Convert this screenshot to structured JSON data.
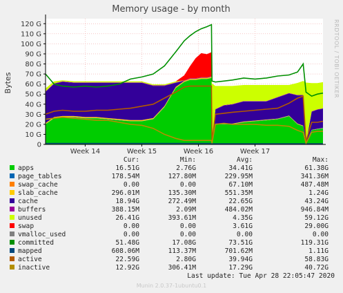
{
  "chart_data": {
    "type": "area",
    "title": "Memory usage - by month",
    "ylabel": "Bytes",
    "side_label": "RRDTOOL / TOBI OETIKER",
    "ylim": [
      0,
      125
    ],
    "yticks": [
      "0",
      "10 G",
      "20 G",
      "30 G",
      "40 G",
      "50 G",
      "60 G",
      "70 G",
      "80 G",
      "90 G",
      "100 G",
      "110 G",
      "120 G"
    ],
    "ytick_values": [
      0,
      10,
      20,
      30,
      40,
      50,
      60,
      70,
      80,
      90,
      100,
      110,
      120
    ],
    "xlim": [
      13.3,
      18.2
    ],
    "xticks": [
      {
        "label": "Week 14",
        "value": 14
      },
      {
        "label": "Week 15",
        "value": 15
      },
      {
        "label": "Week 16",
        "value": 16
      },
      {
        "label": "Week 17",
        "value": 17
      }
    ],
    "x": [
      13.3,
      13.45,
      13.6,
      13.8,
      14.0,
      14.2,
      14.4,
      14.6,
      14.8,
      15.0,
      15.2,
      15.4,
      15.6,
      15.75,
      15.85,
      15.95,
      16.05,
      16.15,
      16.23,
      16.24,
      16.3,
      16.45,
      16.6,
      16.8,
      17.0,
      17.2,
      17.4,
      17.6,
      17.75,
      17.85,
      17.9,
      18.0,
      18.1,
      18.2
    ],
    "series": [
      {
        "name": "apps",
        "color": "#00cc00",
        "values": [
          20,
          26,
          27,
          27,
          26,
          26,
          25,
          24,
          23,
          23,
          25,
          37,
          56,
          62,
          64,
          64,
          65,
          65,
          66,
          2,
          20,
          20,
          20,
          22,
          23,
          24,
          25,
          28,
          20,
          18,
          1,
          14,
          15,
          16
        ]
      },
      {
        "name": "page_tables",
        "color": "#0066b3",
        "values": [
          0.2,
          0.2,
          0.2,
          0.2,
          0.2,
          0.2,
          0.2,
          0.2,
          0.2,
          0.2,
          0.2,
          0.2,
          0.2,
          0.2,
          0.2,
          0.2,
          0.2,
          0.2,
          0.2,
          0.2,
          0.2,
          0.2,
          0.2,
          0.2,
          0.2,
          0.2,
          0.2,
          0.2,
          0.2,
          0.2,
          0.2,
          0.2,
          0.2,
          0.2
        ]
      },
      {
        "name": "swap_cache",
        "color": "#ff8000",
        "values": [
          0,
          0,
          0,
          0,
          0,
          0,
          0,
          0,
          0,
          0,
          0,
          0,
          0,
          0,
          0,
          0,
          0,
          0,
          0,
          0,
          0,
          0,
          0,
          0,
          0,
          0,
          0,
          0,
          0,
          0,
          0,
          0,
          0,
          0
        ]
      },
      {
        "name": "slab_cache",
        "color": "#ffcc00",
        "values": [
          1,
          1,
          1,
          1,
          1,
          1,
          1,
          1,
          1,
          1,
          1,
          1,
          1,
          1,
          1,
          1,
          1,
          1,
          1,
          0.3,
          0.5,
          0.5,
          0.5,
          0.5,
          0.5,
          0.5,
          0.5,
          0.5,
          0.5,
          0.5,
          0.3,
          0.3,
          0.3,
          0.3
        ]
      },
      {
        "name": "cache",
        "color": "#330099",
        "values": [
          31,
          33,
          34,
          33,
          34,
          34,
          35,
          36,
          37,
          37,
          32,
          20,
          4,
          0,
          0,
          0,
          0,
          0,
          0,
          0,
          14,
          18,
          19,
          20,
          19,
          18,
          21,
          22,
          28,
          30,
          0,
          18,
          19,
          19
        ]
      },
      {
        "name": "buffers",
        "color": "#990099",
        "values": [
          0.5,
          0.5,
          0.5,
          0.5,
          0.5,
          0.5,
          0.5,
          0.5,
          0.5,
          0.5,
          0.5,
          0.5,
          0.5,
          0.5,
          0.5,
          0.5,
          0.5,
          0.5,
          0.5,
          0,
          0.4,
          0.4,
          0.4,
          0.4,
          0.4,
          0.4,
          0.4,
          0.4,
          0.4,
          0.4,
          0,
          0.4,
          0.4,
          0.4
        ]
      },
      {
        "name": "unused",
        "color": "#ccff00",
        "values": [
          3,
          2,
          1,
          1,
          1,
          1,
          1,
          1,
          1,
          1,
          1,
          1,
          1,
          0,
          0,
          0,
          0,
          0,
          0,
          58,
          23,
          19,
          18,
          16,
          16,
          16,
          12,
          8,
          12,
          14,
          60,
          28,
          26,
          26
        ]
      },
      {
        "name": "swap",
        "color": "#ff0000",
        "values": [
          0,
          0,
          0,
          0,
          0,
          0,
          0,
          0,
          0,
          0,
          0,
          0,
          0,
          5,
          12,
          20,
          24,
          23,
          24,
          0,
          0,
          0,
          0,
          0,
          0,
          0,
          0,
          0,
          0,
          0,
          0,
          0,
          0,
          0
        ]
      },
      {
        "name": "vmalloc_used",
        "color": "#808080",
        "values": [
          0,
          0,
          0,
          0,
          0,
          0,
          0,
          0,
          0,
          0,
          0,
          0,
          0,
          0,
          0,
          0,
          0,
          0,
          0,
          0,
          0,
          0,
          0,
          0,
          0,
          0,
          0,
          0,
          0,
          0,
          0,
          0,
          0,
          0
        ]
      }
    ],
    "lines": [
      {
        "name": "committed",
        "color": "#008f00",
        "values": [
          70,
          60,
          58,
          57,
          58,
          57,
          58,
          60,
          65,
          67,
          70,
          78,
          92,
          103,
          108,
          112,
          115,
          117,
          119,
          63,
          62,
          63,
          64,
          66,
          65,
          66,
          68,
          69,
          72,
          80,
          52,
          48,
          50,
          51
        ]
      },
      {
        "name": "mapped",
        "color": "#00487d",
        "values": [
          1,
          1,
          1,
          1,
          1,
          1,
          1,
          1,
          1,
          1,
          1,
          1,
          1,
          1,
          1,
          1,
          1,
          1,
          1,
          0.6,
          0.6,
          0.6,
          0.6,
          0.6,
          0.6,
          0.6,
          0.6,
          0.6,
          0.6,
          0.6,
          0.6,
          0.6,
          0.6,
          0.6
        ]
      },
      {
        "name": "active",
        "color": "#b35a00",
        "values": [
          30,
          33,
          34,
          33,
          33,
          34,
          34,
          35,
          36,
          38,
          40,
          46,
          52,
          57,
          58,
          58,
          58,
          58,
          58,
          3,
          30,
          31,
          32,
          33,
          34,
          35,
          36,
          41,
          46,
          48,
          3,
          22,
          22,
          23
        ]
      },
      {
        "name": "inactive",
        "color": "#b38f00",
        "values": [
          25,
          26,
          27,
          26,
          25,
          24,
          24,
          22,
          20,
          19,
          16,
          10,
          6,
          4,
          4,
          4,
          4,
          4,
          4,
          1,
          20,
          21,
          20,
          20,
          20,
          19,
          19,
          18,
          14,
          12,
          1,
          12,
          13,
          13
        ]
      }
    ]
  },
  "legend": {
    "headers": [
      "Cur:",
      "Min:",
      "Avg:",
      "Max:"
    ],
    "rows": [
      {
        "name": "apps",
        "color": "#00cc00",
        "cur": "16.51G",
        "min": "2.76G",
        "avg": "34.41G",
        "max": "61.38G"
      },
      {
        "name": "page_tables",
        "color": "#0066b3",
        "cur": "178.54M",
        "min": "127.80M",
        "avg": "229.95M",
        "max": "341.36M"
      },
      {
        "name": "swap_cache",
        "color": "#ff8000",
        "cur": "0.00",
        "min": "0.00",
        "avg": "67.10M",
        "max": "487.48M"
      },
      {
        "name": "slab_cache",
        "color": "#ffcc00",
        "cur": "296.01M",
        "min": "135.30M",
        "avg": "551.35M",
        "max": "1.24G"
      },
      {
        "name": "cache",
        "color": "#330099",
        "cur": "18.94G",
        "min": "272.49M",
        "avg": "22.65G",
        "max": "43.24G"
      },
      {
        "name": "buffers",
        "color": "#990099",
        "cur": "388.15M",
        "min": "2.09M",
        "avg": "484.02M",
        "max": "946.84M"
      },
      {
        "name": "unused",
        "color": "#ccff00",
        "cur": "26.41G",
        "min": "393.61M",
        "avg": "4.35G",
        "max": "59.12G"
      },
      {
        "name": "swap",
        "color": "#ff0000",
        "cur": "0.00",
        "min": "0.00",
        "avg": "3.61G",
        "max": "29.00G"
      },
      {
        "name": "vmalloc_used",
        "color": "#808080",
        "cur": "0.00",
        "min": "0.00",
        "avg": "0.00",
        "max": "0.00"
      },
      {
        "name": "committed",
        "color": "#008f00",
        "cur": "51.48G",
        "min": "17.08G",
        "avg": "73.51G",
        "max": "119.31G"
      },
      {
        "name": "mapped",
        "color": "#00487d",
        "cur": "608.06M",
        "min": "113.37M",
        "avg": "701.62M",
        "max": "1.11G"
      },
      {
        "name": "active",
        "color": "#b35a00",
        "cur": "22.59G",
        "min": "2.80G",
        "avg": "39.94G",
        "max": "58.83G"
      },
      {
        "name": "inactive",
        "color": "#b38f00",
        "cur": "12.92G",
        "min": "306.41M",
        "avg": "17.29G",
        "max": "40.72G"
      }
    ]
  },
  "last_update": "Last update: Tue Apr 28 22:05:47 2020",
  "footer": "Munin 2.0.37-1ubuntu0.1"
}
